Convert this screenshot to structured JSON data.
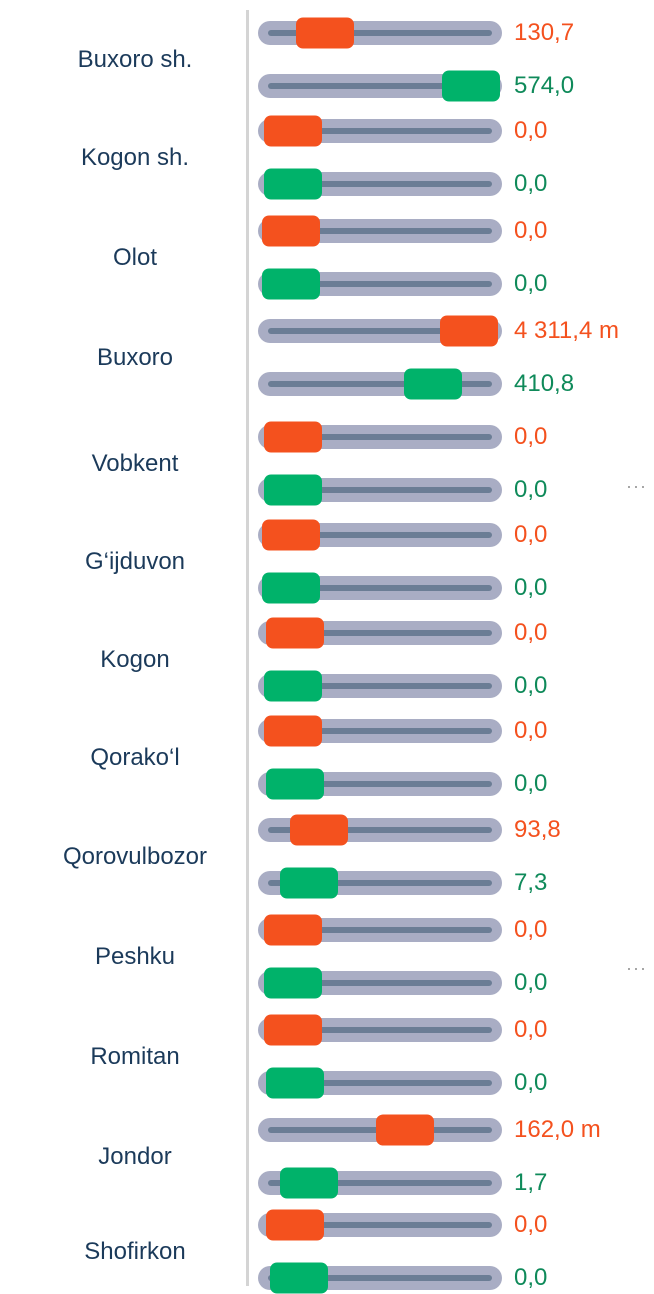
{
  "rows": [
    {
      "label": "Buxoro sh.",
      "top": "130,7",
      "bottom": "574,0"
    },
    {
      "label": "Kogon sh.",
      "top": "0,0",
      "bottom": "0,0"
    },
    {
      "label": "Olot",
      "top": "0,0",
      "bottom": "0,0"
    },
    {
      "label": "Buxoro",
      "top": "4 311,4 m",
      "bottom": "410,8"
    },
    {
      "label": "Vobkent",
      "top": "0,0",
      "bottom": "0,0"
    },
    {
      "label": "G‘ijduvon",
      "top": "0,0",
      "bottom": "0,0"
    },
    {
      "label": "Kogon",
      "top": "0,0",
      "bottom": "0,0"
    },
    {
      "label": "Qorako‘l",
      "top": "0,0",
      "bottom": "0,0"
    },
    {
      "label": "Qorovulbozor",
      "top": "93,8",
      "bottom": "7,3"
    },
    {
      "label": "Peshku",
      "top": "0,0",
      "bottom": "0,0"
    },
    {
      "label": "Romitan",
      "top": "0,0",
      "bottom": "0,0"
    },
    {
      "label": "Jondor",
      "top": "162,0 m",
      "bottom": "1,7"
    },
    {
      "label": "Shofirkon",
      "top": "0,0",
      "bottom": "0,0"
    }
  ]
}
